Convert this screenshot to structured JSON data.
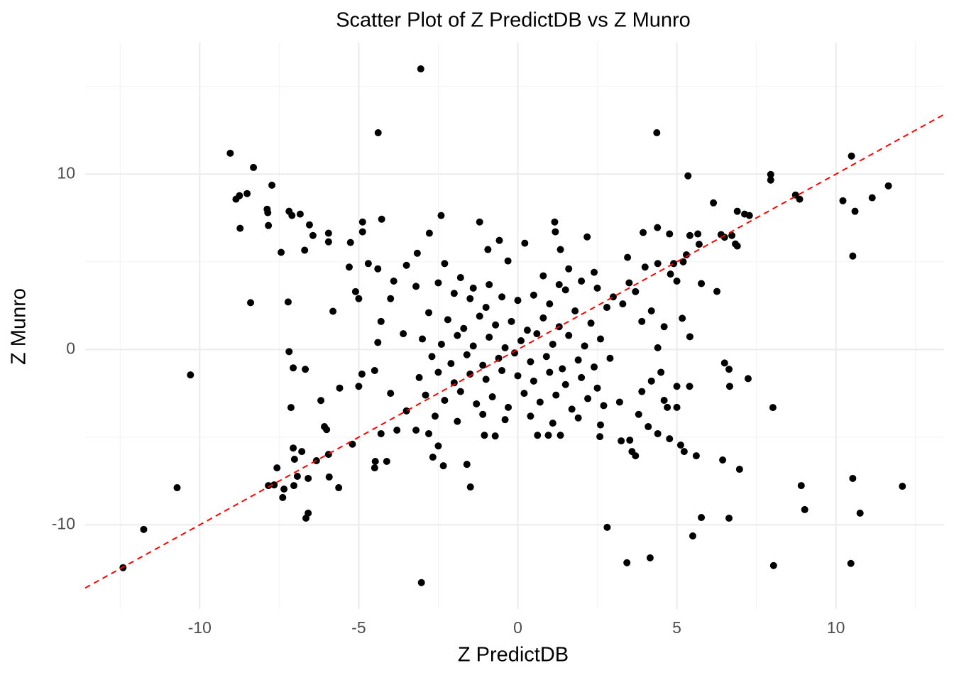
{
  "chart_data": {
    "type": "scatter",
    "title": "Scatter Plot of Z PredictDB vs Z Munro",
    "x_label": "Z PredictDB",
    "y_label": "Z Munro",
    "xlim": [
      -13.6,
      13.4
    ],
    "ylim": [
      -14.8,
      17.5
    ],
    "xticks": [
      -10,
      -5,
      0,
      5,
      10
    ],
    "yticks": [
      -10,
      0,
      10
    ],
    "minor_xticks": [
      -12.5,
      -7.5,
      -2.5,
      2.5,
      7.5,
      12.5
    ],
    "minor_yticks": [
      -5,
      5,
      15
    ],
    "grid": true,
    "reference_line": {
      "slope": 1,
      "intercept": 0,
      "color": "#ff0000",
      "dashed": true
    },
    "series": [
      {
        "color": "#000000",
        "x": [
          -3.05,
          -4.39,
          4.37,
          -9.04,
          -8.31,
          -8.86,
          -8.75,
          -8.51,
          -7.73,
          -7.88,
          -7.86,
          -7.84,
          -8.73,
          -7.19,
          -7.1,
          -6.84,
          -6.55,
          -6.44,
          -5.95,
          -5.95,
          -7.44,
          -6.7,
          -5.26,
          -4.88,
          -4.88,
          -4.28,
          -2.41,
          -2.78,
          -3.16,
          -1.2,
          -0.94,
          -0.58,
          -0.31,
          0.22,
          1.16,
          1.18,
          1.34,
          2.18,
          5.35,
          6.15,
          7.95,
          7.95,
          6.9,
          7.13,
          7.28,
          10.49,
          11.65,
          11.14,
          10.22,
          10.6,
          10.53,
          8.73,
          8.86,
          4.39,
          4.77,
          5.41,
          5.66,
          6.39,
          6.73,
          6.84,
          3.94,
          3.45,
          -8.4,
          -7.22,
          -5.81,
          -10.29,
          -7.19,
          -7.06,
          -6.68,
          -7.13,
          5.17,
          5.41,
          5.77,
          6.26,
          6.5,
          6.64,
          6.66,
          7.24,
          8.02,
          -10.71,
          -11.76,
          -12.41,
          -7.57,
          -7.66,
          -7.84,
          -7.39,
          -7.35,
          -7.06,
          -7.02,
          -6.79,
          -7.04,
          -6.93,
          -6.59,
          -6.66,
          -6.59,
          -6.33,
          -5.95,
          -5.93,
          -5.63,
          -6.19,
          -6.08,
          -6.01,
          -3.03,
          -2.67,
          -2.34,
          -1.6,
          -1.49,
          -4.48,
          -4.12,
          -4.5,
          2.81,
          3.43,
          4.16,
          5.5,
          5.77,
          6.64,
          6.44,
          6.97,
          8.04,
          8.91,
          9.02,
          10.47,
          10.53,
          10.76,
          12.09,
          5.12,
          5.23,
          5.61,
          4.77,
          3.52,
          3.59,
          3.7,
          3.25,
          2.58,
          0.62,
          0.96,
          1.34,
          -0.71,
          -1.05,
          -5,
          -4.5,
          -4,
          -3.5,
          -3.8,
          -4.3,
          -5.2,
          -5.6,
          -4.9,
          -3.2,
          -2.8,
          -2.5,
          -4.4,
          -3.9,
          -3.5,
          -3.2,
          -5.1,
          -4.7,
          -4,
          -4.3,
          -3.6,
          -4.4,
          -5.3,
          -5,
          3.8,
          4.1,
          4.4,
          3.2,
          4.6,
          5,
          5.4,
          4.7,
          5,
          3.9,
          4.2,
          4.5,
          3.5,
          4,
          4.4,
          4.8,
          5,
          3.7,
          4.2,
          4.6,
          3.3,
          3.9,
          4.4,
          4.9,
          5.2,
          5.3,
          5.7,
          6.5,
          6.9,
          -2.5,
          -2,
          -1.5,
          -1,
          -0.5,
          0,
          0.5,
          1,
          1.5,
          2,
          2.5,
          3,
          -2.8,
          -2.2,
          -1.7,
          -1.2,
          -0.7,
          -0.2,
          0.3,
          0.8,
          1.3,
          1.8,
          2.3,
          2.8,
          -3,
          -2.4,
          -1.9,
          -1.4,
          -0.9,
          -0.4,
          0.1,
          0.6,
          1.1,
          1.6,
          2.1,
          2.6,
          -2.7,
          -2.1,
          -1.6,
          -1.1,
          -0.6,
          -0.1,
          0.4,
          0.9,
          1.4,
          1.9,
          2.4,
          2.9,
          -3.1,
          -2.5,
          -2,
          -1.5,
          -1,
          -0.5,
          0,
          0.5,
          1,
          1.5,
          2,
          2.5,
          -2.9,
          -2.3,
          -1.8,
          -1.3,
          -0.8,
          -0.3,
          0.2,
          0.7,
          1.2,
          1.7,
          2.2,
          2.7,
          -2.6,
          -1.9,
          -1.1,
          -0.4,
          0.4,
          1.1,
          1.9,
          2.6,
          -1.8,
          -0.9,
          0.8,
          1.6,
          2.4,
          -2.3,
          1.3,
          -1.4
        ],
        "values": [
          16.0,
          12.36,
          12.36,
          11.19,
          10.38,
          8.57,
          8.77,
          8.89,
          9.37,
          8.0,
          7.8,
          7.07,
          6.91,
          7.88,
          7.64,
          7.72,
          7.11,
          6.5,
          6.63,
          6.14,
          5.54,
          5.66,
          6.1,
          7.27,
          6.71,
          7.43,
          7.64,
          6.63,
          5.49,
          7.27,
          5.7,
          6.22,
          5.05,
          6.06,
          7.27,
          6.71,
          5.7,
          6.42,
          9.9,
          8.36,
          9.98,
          9.66,
          7.88,
          7.72,
          7.64,
          11.03,
          9.33,
          8.65,
          8.48,
          7.88,
          5.33,
          8.81,
          8.57,
          6.95,
          6.59,
          6.5,
          6.59,
          6.55,
          6.5,
          6.02,
          6.67,
          5.25,
          2.67,
          2.71,
          2.18,
          -1.45,
          -0.12,
          -1.05,
          -1.13,
          -3.31,
          1.78,
          0.73,
          3.76,
          3.31,
          -0.77,
          -1.13,
          -2.1,
          -1.66,
          -3.31,
          -7.88,
          -10.26,
          -12.44,
          -6.75,
          -7.72,
          -7.76,
          -8.44,
          -7.96,
          -5.62,
          -6.26,
          -5.82,
          -7.76,
          -7.23,
          -7.35,
          -9.62,
          -9.33,
          -6.34,
          -5.98,
          -7.27,
          -7.88,
          -2.91,
          -4.4,
          -4.57,
          -13.29,
          -6.14,
          -6.63,
          -6.55,
          -7.84,
          -6.38,
          -6.38,
          -6.75,
          -10.14,
          -12.16,
          -11.88,
          -10.63,
          -9.58,
          -9.62,
          -6.3,
          -6.83,
          -12.32,
          -7.76,
          -9.13,
          -12.2,
          -7.35,
          -9.33,
          -7.8,
          -5.45,
          -5.82,
          -6.06,
          -5.09,
          -5.17,
          -5.82,
          -6.06,
          -5.21,
          -4.97,
          -4.89,
          -4.89,
          -4.89,
          -4.93,
          -4.89,
          -2.1,
          -1.2,
          -2.5,
          -3.5,
          -4.6,
          -4.8,
          -5.4,
          -2.2,
          -1.4,
          -4.6,
          -4.8,
          -5.5,
          4.6,
          3.9,
          4.8,
          3.6,
          3.3,
          4.9,
          2.9,
          1.6,
          0.9,
          0.4,
          4.7,
          2.9,
          -3.7,
          -4.4,
          -4.8,
          -3,
          -2.9,
          -2.1,
          -2.1,
          -3.3,
          -3.3,
          -2.4,
          -1.8,
          -1.3,
          3.8,
          4.7,
          4.9,
          4.3,
          3.9,
          3.3,
          2.2,
          1.3,
          2.6,
          1.6,
          0.1,
          4.9,
          5,
          5.4,
          6,
          6.4,
          5.9,
          3.8,
          3.2,
          2.9,
          2.4,
          3.0,
          2.8,
          3.1,
          2.6,
          3.4,
          3.9,
          3.5,
          3.0,
          2.1,
          1.7,
          1.2,
          1.9,
          1.4,
          1.6,
          1.1,
          1.8,
          1.3,
          2.2,
          1.5,
          2.4,
          0.6,
          0.3,
          0.8,
          0.2,
          0.7,
          0.1,
          0.5,
          0.9,
          0.3,
          0.8,
          0.2,
          0.6,
          -0.4,
          -0.8,
          -0.3,
          -0.9,
          -0.5,
          -0.2,
          -0.7,
          -0.4,
          -1.1,
          -0.6,
          -1.0,
          -0.5,
          -1.6,
          -1.3,
          -1.9,
          -1.4,
          -1.7,
          -1.2,
          -1.5,
          -1.8,
          -1.3,
          -2.0,
          -1.6,
          -2.2,
          -2.6,
          -2.9,
          -2.4,
          -3.1,
          -2.7,
          -3.3,
          -2.5,
          -3.0,
          -2.6,
          -3.4,
          -2.8,
          -3.2,
          -3.8,
          -4.1,
          -3.7,
          -4.0,
          -3.8,
          -4.2,
          -3.9,
          -4.3,
          4.1,
          3.7,
          4.2,
          4.6,
          4.4,
          4.9,
          3.7,
          3.5
        ]
      }
    ]
  }
}
